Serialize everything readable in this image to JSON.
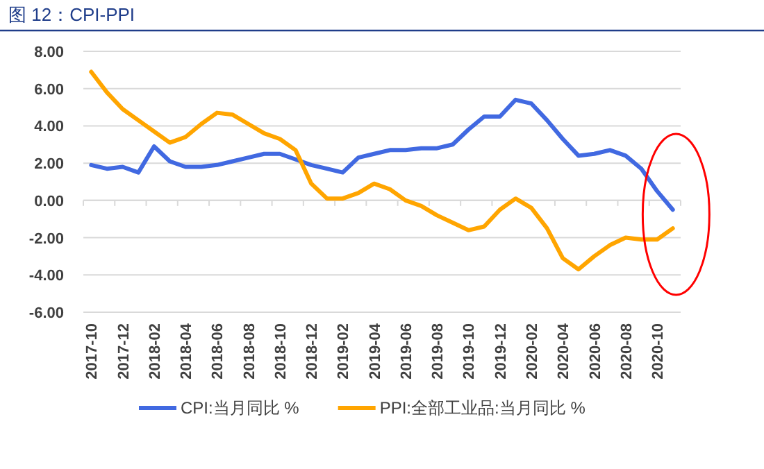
{
  "chart_data": {
    "type": "line",
    "title": "图 12：CPI-PPI",
    "categories": [
      "2017-10",
      null,
      "2017-12",
      null,
      "2018-02",
      null,
      "2018-04",
      null,
      "2018-06",
      null,
      "2018-08",
      null,
      "2018-10",
      null,
      "2018-12",
      null,
      "2019-02",
      null,
      "2019-04",
      null,
      "2019-06",
      null,
      "2019-08",
      null,
      "2019-10",
      null,
      "2019-12",
      null,
      "2020-02",
      null,
      "2020-04",
      null,
      "2020-06",
      null,
      "2020-08",
      null,
      "2020-10",
      null
    ],
    "series": [
      {
        "name": "CPI:当月同比 %",
        "color": "#4169e1",
        "values": [
          1.9,
          1.7,
          1.8,
          1.5,
          2.9,
          2.1,
          1.8,
          1.8,
          1.9,
          2.1,
          2.3,
          2.5,
          2.5,
          2.2,
          1.9,
          1.7,
          1.5,
          2.3,
          2.5,
          2.7,
          2.7,
          2.8,
          2.8,
          3.0,
          3.8,
          4.5,
          4.5,
          5.4,
          5.2,
          4.3,
          3.3,
          2.4,
          2.5,
          2.7,
          2.4,
          1.7,
          0.5,
          -0.5
        ]
      },
      {
        "name": "PPI:全部工业品:当月同比 %",
        "color": "#ffa500",
        "values": [
          6.9,
          5.8,
          4.9,
          4.3,
          3.7,
          3.1,
          3.4,
          4.1,
          4.7,
          4.6,
          4.1,
          3.6,
          3.3,
          2.7,
          0.9,
          0.1,
          0.1,
          0.4,
          0.9,
          0.6,
          0.0,
          -0.3,
          -0.8,
          -1.2,
          -1.6,
          -1.4,
          -0.5,
          0.1,
          -0.4,
          -1.5,
          -3.1,
          -3.7,
          -3.0,
          -2.4,
          -2.0,
          -2.1,
          -2.1,
          -1.5
        ]
      }
    ],
    "ylim": [
      -6,
      8
    ],
    "yticks": [
      {
        "value": 8,
        "label": "8.00"
      },
      {
        "value": 6,
        "label": "6.00"
      },
      {
        "value": 4,
        "label": "4.00"
      },
      {
        "value": 2,
        "label": "2.00"
      },
      {
        "value": 0,
        "label": "0.00"
      },
      {
        "value": -2,
        "label": "-2.00"
      },
      {
        "value": -4,
        "label": "-4.00"
      },
      {
        "value": -6,
        "label": "-6.00"
      }
    ],
    "grid": "y",
    "legend": "bottom",
    "marker": "none",
    "line_style": "solid"
  }
}
